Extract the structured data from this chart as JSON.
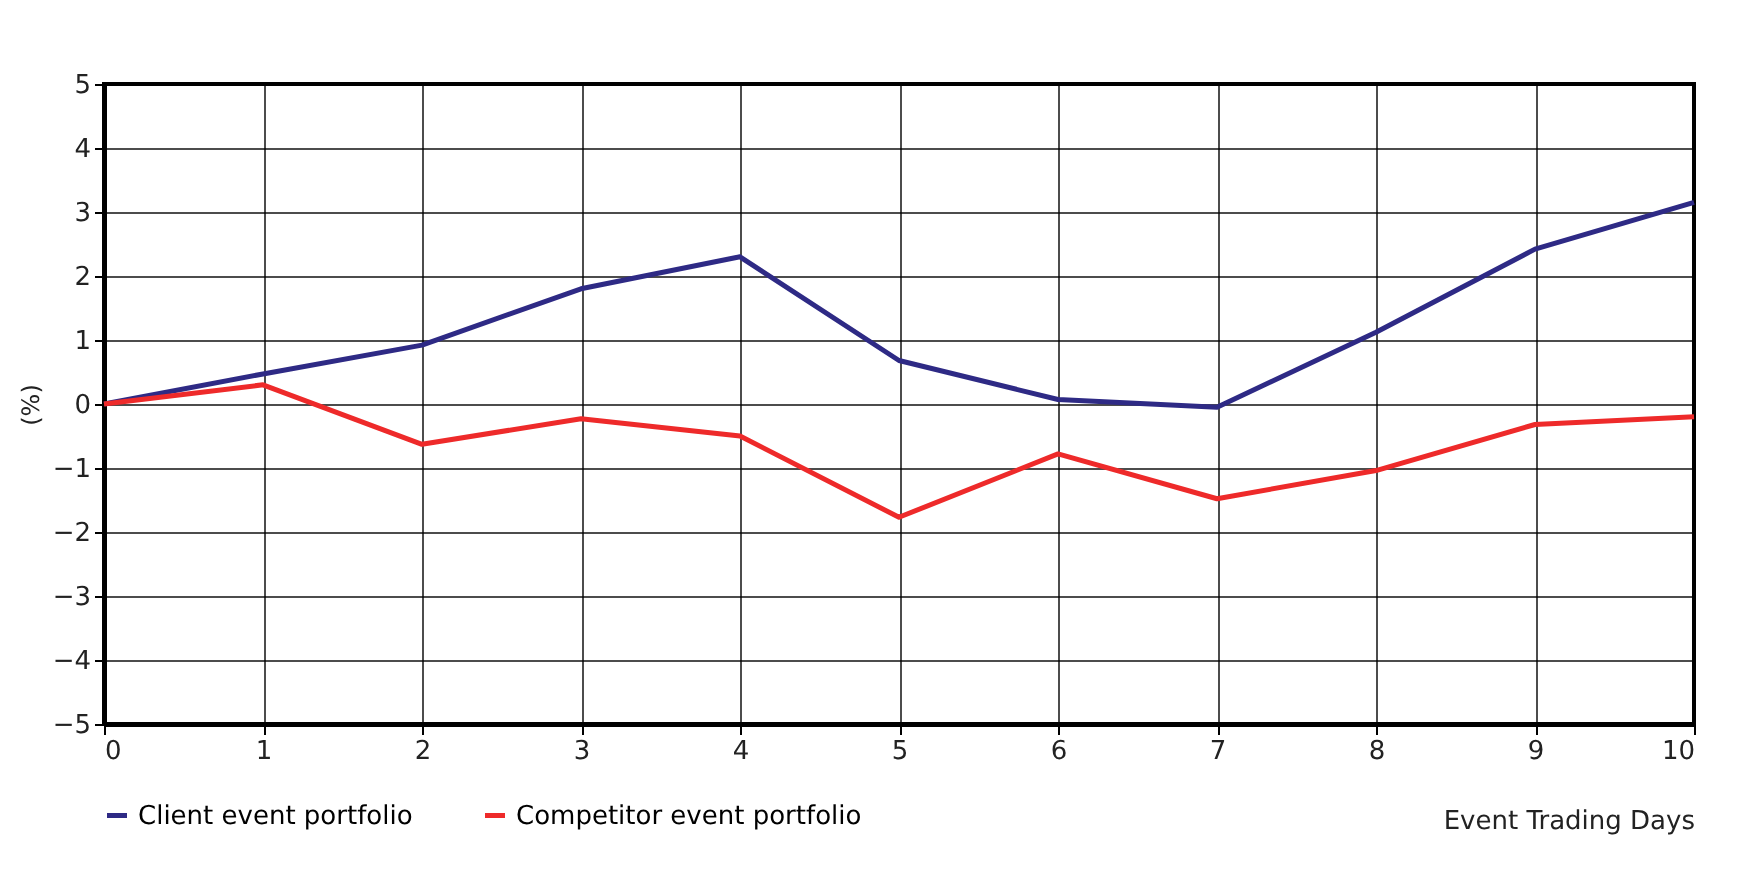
{
  "chart_data": {
    "type": "line",
    "ylabel": "(%)",
    "xlabel": "Event Trading Days",
    "x": [
      0,
      1,
      2,
      3,
      4,
      5,
      6,
      7,
      8,
      9,
      10
    ],
    "series": [
      {
        "name": "Client event portfolio",
        "color": "#2e2a85",
        "values": [
          0,
          0.47,
          0.92,
          1.8,
          2.3,
          0.68,
          0.07,
          -0.05,
          1.12,
          2.42,
          3.15
        ]
      },
      {
        "name": "Competitor event portfolio",
        "color": "#ee2a2a",
        "values": [
          0,
          0.3,
          -0.63,
          -0.23,
          -0.5,
          -1.77,
          -0.78,
          -1.48,
          -1.04,
          -0.32,
          -0.2
        ]
      }
    ],
    "xlim": [
      0,
      10
    ],
    "xticks": [
      0,
      1,
      2,
      3,
      4,
      5,
      6,
      7,
      8,
      9,
      10
    ],
    "ylim": [
      -5,
      5
    ],
    "yticks": [
      -5,
      -4,
      -3,
      -2,
      -1,
      0,
      1,
      2,
      3,
      4,
      5
    ],
    "grid": true,
    "legend": "bottom",
    "marker": "none",
    "line_style": "solid"
  }
}
